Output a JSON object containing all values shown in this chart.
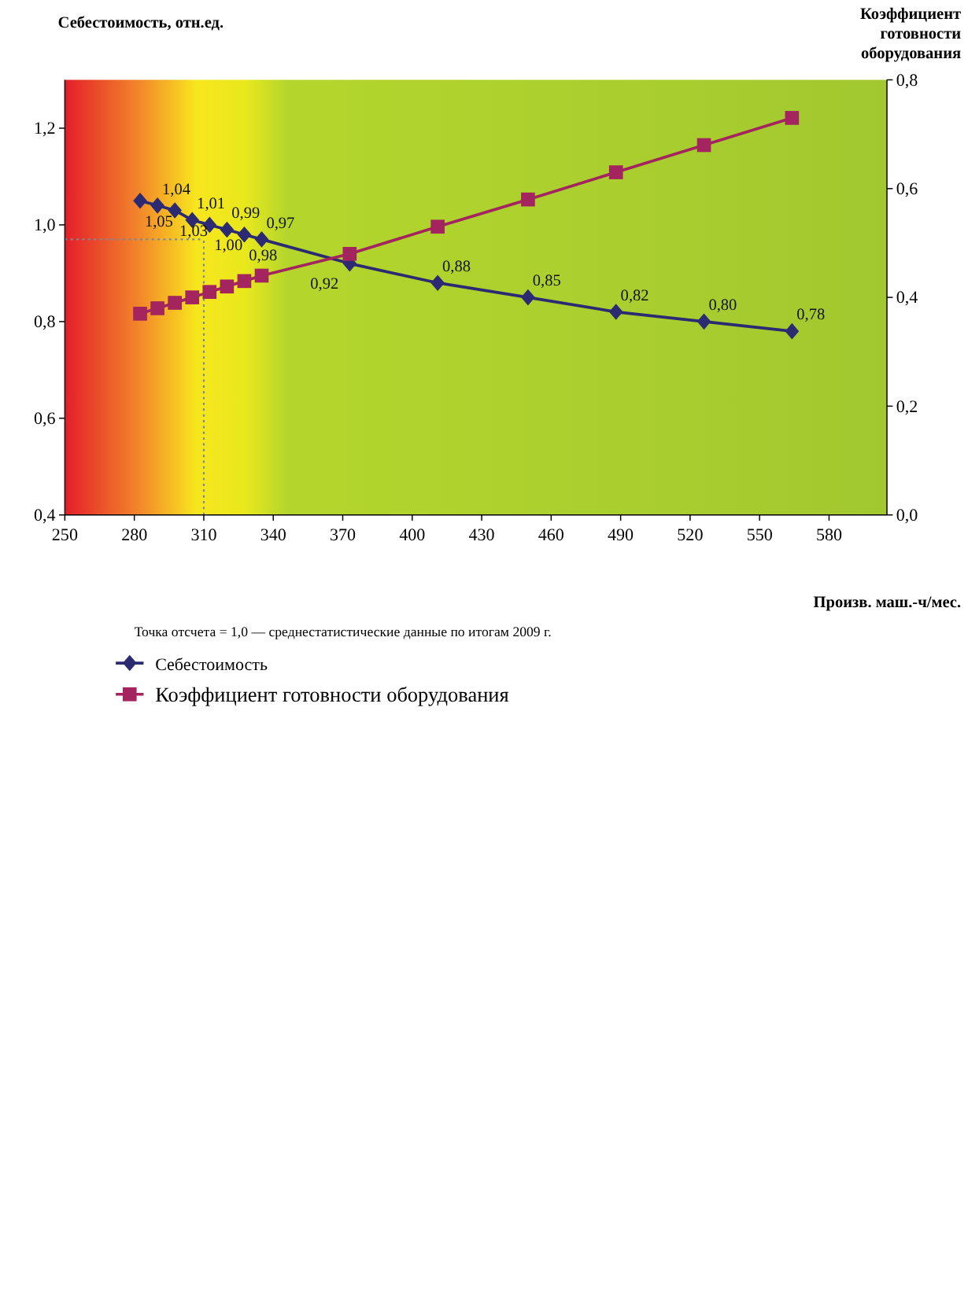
{
  "chart_data": {
    "type": "line",
    "xlabel": "Произв. маш.-ч/мес.",
    "ylabel": "Себестоимость, отн.ед.",
    "y2label": "Коэффициент готовности оборудования",
    "x": [
      282.5,
      290,
      297.5,
      305,
      312.5,
      320,
      327.5,
      335,
      373,
      411,
      450,
      488,
      526,
      564
    ],
    "xlim": [
      250,
      605
    ],
    "xticks": [
      250,
      280,
      310,
      340,
      370,
      400,
      430,
      460,
      490,
      520,
      550,
      580
    ],
    "ylim": [
      0.4,
      1.3
    ],
    "yticks": [
      {
        "value": 0.4,
        "label": "0,4"
      },
      {
        "value": 0.6,
        "label": "0,6"
      },
      {
        "value": 0.8,
        "label": "0,8"
      },
      {
        "value": 1.0,
        "label": "1,0"
      },
      {
        "value": 1.2,
        "label": "1,2"
      }
    ],
    "y2lim": [
      0,
      0.8
    ],
    "y2ticks": [
      {
        "value": 0,
        "label": "0,0"
      },
      {
        "value": 0.2,
        "label": "0,2"
      },
      {
        "value": 0.4,
        "label": "0,4"
      },
      {
        "value": 0.6,
        "label": "0,6"
      },
      {
        "value": 0.8,
        "label": "0,8"
      }
    ],
    "series": [
      {
        "name": "Себестоимость",
        "color": "#2b2a72",
        "marker": "diamond",
        "values": [
          1.05,
          1.04,
          1.03,
          1.01,
          1.0,
          0.99,
          0.98,
          0.97,
          0.92,
          0.88,
          0.85,
          0.82,
          0.8,
          0.78
        ],
        "value_labels": [
          "1,05",
          "1,04",
          "1,03",
          "1,01",
          "1,00",
          "0,99",
          "0,98",
          "0,97",
          "0,92",
          "0,88",
          "0,85",
          "0,82",
          "0,80",
          "0,78"
        ]
      },
      {
        "name": "Коэффициент готовности оборудования",
        "color": "#a3245e",
        "marker": "square",
        "axis": "y2",
        "values": [
          0.37,
          0.38,
          0.39,
          0.4,
          0.41,
          0.42,
          0.43,
          0.44,
          0.48,
          0.53,
          0.58,
          0.63,
          0.68,
          0.73
        ]
      }
    ],
    "ref_lines": [
      {
        "axis": "x",
        "value": 310,
        "line_style": "dotted",
        "color": "#7a8a9a"
      },
      {
        "axis": "y",
        "value": 0.97,
        "line_style": "dotted",
        "color": "#7a8a9a"
      }
    ],
    "annotations": [
      "Точка отсчета = 1,0 — среднестатистические данные по итогам 2009 г."
    ],
    "legend": "bottom left",
    "grid": false
  }
}
